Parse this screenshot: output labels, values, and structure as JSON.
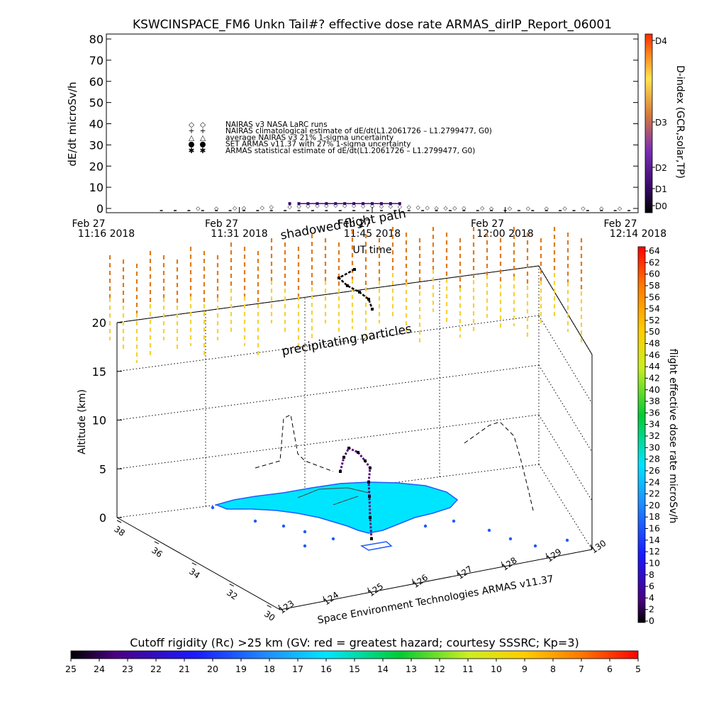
{
  "chart_data": [
    {
      "type": "scatter",
      "title": "KSWCINSPACE_FM6 Unkn Tail#? effective dose rate ARMAS_dirIP_Report_06001",
      "ylabel": "dE/dt microSv/h",
      "xlabel": "UT time",
      "ylim": [
        0,
        80
      ],
      "yticks": [
        "0",
        "10",
        "20",
        "30",
        "40",
        "50",
        "60",
        "70",
        "80"
      ],
      "xticks": [
        {
          "date": "Feb 27",
          "time": "11:16 2018"
        },
        {
          "date": "Feb 27",
          "time": "11:31 2018"
        },
        {
          "date": "Feb 27",
          "time": "11:45 2018"
        },
        {
          "date": "Feb 27",
          "time": "12:00 2018"
        },
        {
          "date": "Feb 27",
          "time": "12:14 2018"
        }
      ],
      "legend": [
        {
          "symbol": "◇",
          "label": "NAIRAS v3 NASA LaRC runs"
        },
        {
          "symbol": "+",
          "label": "NAIRAS climatological estimate of dE/dt(L1.2061726 – L1.2799477, G0)"
        },
        {
          "symbol": "△",
          "label": "average NAIRAS v3 21% 1-sigma uncertainty"
        },
        {
          "symbol": "●",
          "label": "SET ARMAS v11.37 with 27% 1-sigma uncertainty"
        },
        {
          "symbol": "✱",
          "label": "ARMAS statistical estimate of dE/dt(L1.2061726 – L1.2799477, G0)"
        }
      ],
      "series": [
        {
          "name": "NAIRAS v3 NASA LaRC runs",
          "x": [
            "11:26",
            "11:28",
            "11:30",
            "11:31",
            "11:33",
            "11:34",
            "11:36",
            "11:37",
            "11:38",
            "11:39",
            "11:40",
            "11:41",
            "11:42",
            "11:43",
            "11:44",
            "11:45",
            "11:46",
            "11:47",
            "11:48",
            "11:49",
            "11:50",
            "11:51",
            "11:52",
            "11:53",
            "11:54",
            "11:55",
            "11:57",
            "11:58",
            "12:00",
            "12:02",
            "12:04",
            "12:06",
            "12:08",
            "12:10",
            "12:12"
          ],
          "values": [
            0.2,
            0.2,
            0.3,
            0.3,
            0.5,
            0.8,
            1,
            1.2,
            1.4,
            1.5,
            1.5,
            1.6,
            1.5,
            1.5,
            1.4,
            1.3,
            1.2,
            1.2,
            1,
            0.8,
            0.6,
            0.5,
            0.4,
            0.4,
            0.3,
            0.3,
            0.3,
            0.2,
            0.2,
            0.2,
            0.2,
            0.2,
            0.2,
            0.2,
            0.2
          ]
        },
        {
          "name": "ARMAS statistical estimate",
          "x": [
            "11:36",
            "11:37",
            "11:38",
            "11:39",
            "11:40",
            "11:41",
            "11:42",
            "11:43",
            "11:44",
            "11:45",
            "11:46",
            "11:47",
            "11:48"
          ],
          "values": [
            2.3,
            2.3,
            2.3,
            2.3,
            2.3,
            2.3,
            2.3,
            2.3,
            2.3,
            2.3,
            2.3,
            2.3,
            2.3
          ]
        }
      ]
    },
    {
      "type": "scatter",
      "zlabel": "Altitude (km)",
      "zticks": [
        "0",
        "5",
        "10",
        "15",
        "20"
      ],
      "zlim": [
        0,
        22
      ],
      "lat_ticks": [
        "30",
        "32",
        "34",
        "36",
        "38"
      ],
      "lon_ticks": [
        "123",
        "124",
        "125",
        "126",
        "127",
        "128",
        "129",
        "130"
      ],
      "annotations": [
        "shadowed flight path",
        "precipitating particles"
      ],
      "credit": "Space Environment Technologies ARMAS v11.37"
    }
  ],
  "colorbars": {
    "d_index": {
      "label": "D-index (GCR,solar,TP)",
      "ticks": [
        "D0",
        "D1",
        "D2",
        "D3",
        "D4"
      ]
    },
    "dose_rate": {
      "label": "flight effective dose rate microSv/h",
      "ticks": [
        "0",
        "2",
        "4",
        "6",
        "8",
        "10",
        "12",
        "14",
        "16",
        "18",
        "20",
        "22",
        "24",
        "26",
        "28",
        "30",
        "32",
        "34",
        "36",
        "38",
        "40",
        "42",
        "44",
        "46",
        "48",
        "50",
        "52",
        "54",
        "56",
        "58",
        "60",
        "62",
        "64"
      ]
    },
    "cutoff_rigidity": {
      "label": "Cutoff rigidity (Rc) >25 km (GV: red = greatest hazard; courtesy SSSRC; Kp=3)",
      "ticks": [
        "25",
        "24",
        "23",
        "22",
        "21",
        "20",
        "19",
        "18",
        "17",
        "16",
        "15",
        "14",
        "13",
        "12",
        "11",
        "10",
        "9",
        "8",
        "7",
        "6",
        "5"
      ]
    }
  },
  "colors": {
    "land": "#00e5ff",
    "land_edge": "#1e5aff",
    "precip_upper": "#e07a1a",
    "precip_lower": "#f5d23a",
    "flight": "#000000"
  }
}
